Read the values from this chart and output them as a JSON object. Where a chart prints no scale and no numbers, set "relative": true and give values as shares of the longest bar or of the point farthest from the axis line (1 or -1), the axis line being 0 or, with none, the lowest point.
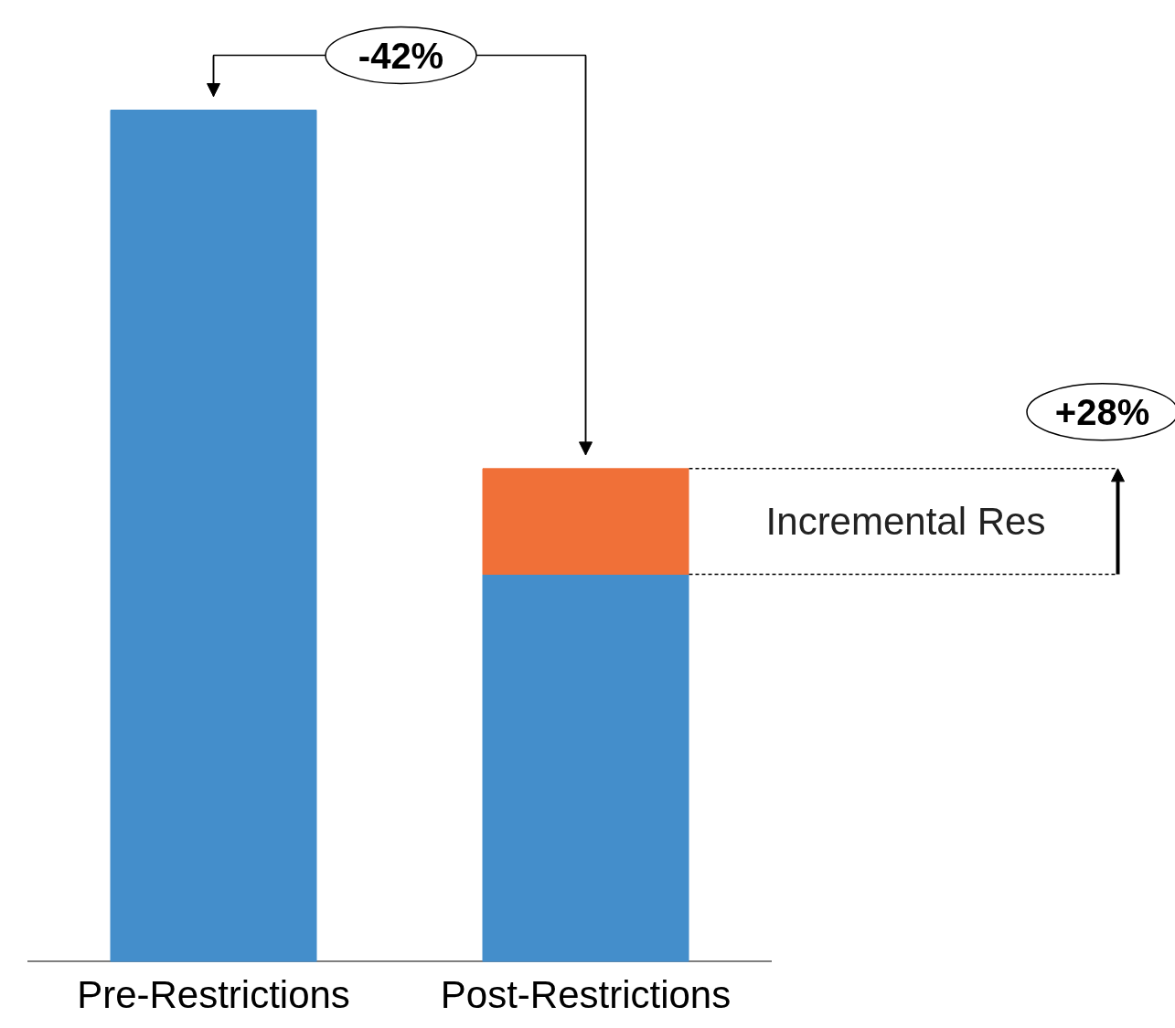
{
  "chart_data": {
    "type": "bar",
    "stacked": true,
    "relative": true,
    "categories": [
      "Pre-Restrictions",
      "Post-Restrictions"
    ],
    "series": [
      {
        "color": "#448ecb",
        "values": [
          1,
          0.455
        ]
      },
      {
        "name": "Incremental Res",
        "color": "#f07038",
        "values": [
          null,
          0.124
        ]
      }
    ],
    "annotations": [
      "-42%",
      "+28%"
    ],
    "ref_lines": [
      {
        "axis": "y",
        "value": 0.455,
        "line_style": "dashed"
      },
      {
        "axis": "y",
        "value": 0.579,
        "line_style": "dashed"
      }
    ],
    "legend": false
  }
}
